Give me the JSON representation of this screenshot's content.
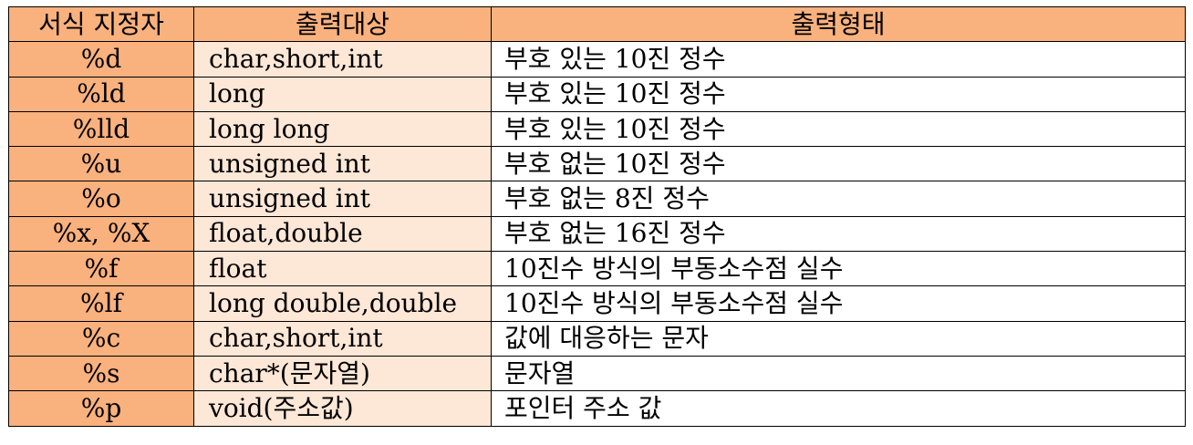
{
  "table": {
    "headers": [
      "서식 지정자",
      "출력대상",
      "출력형태"
    ],
    "rows": [
      [
        "%d",
        "char,short,int",
        "부호 있는 10진 정수"
      ],
      [
        "%ld",
        "long",
        "부호 있는 10진 정수"
      ],
      [
        "%lld",
        "long long",
        "부호 있는 10진 정수"
      ],
      [
        "%u",
        "unsigned int",
        "부호 없는 10진 정수"
      ],
      [
        "%o",
        "unsigned int",
        "부호 없는 8진 정수"
      ],
      [
        "%x, %X",
        "float,double",
        "부호 없는 16진 정수"
      ],
      [
        "%f",
        "float",
        "10진수 방식의 부동소수점 실수"
      ],
      [
        "%lf",
        "long double,double",
        "10진수 방식의 부동소수점 실수"
      ],
      [
        "%c",
        "char,short,int",
        "값에 대응하는 문자"
      ],
      [
        "%s",
        "char*(문자열)",
        "문자열"
      ],
      [
        "%p",
        "void(주소값)",
        "포인터 주소 값"
      ]
    ]
  },
  "colors": {
    "header_bg": "#f9b17e",
    "format_col_bg": "#f9b17e",
    "target_col_bg": "#fde7d7",
    "desc_col_bg": "#ffffff",
    "border": "#000000"
  }
}
